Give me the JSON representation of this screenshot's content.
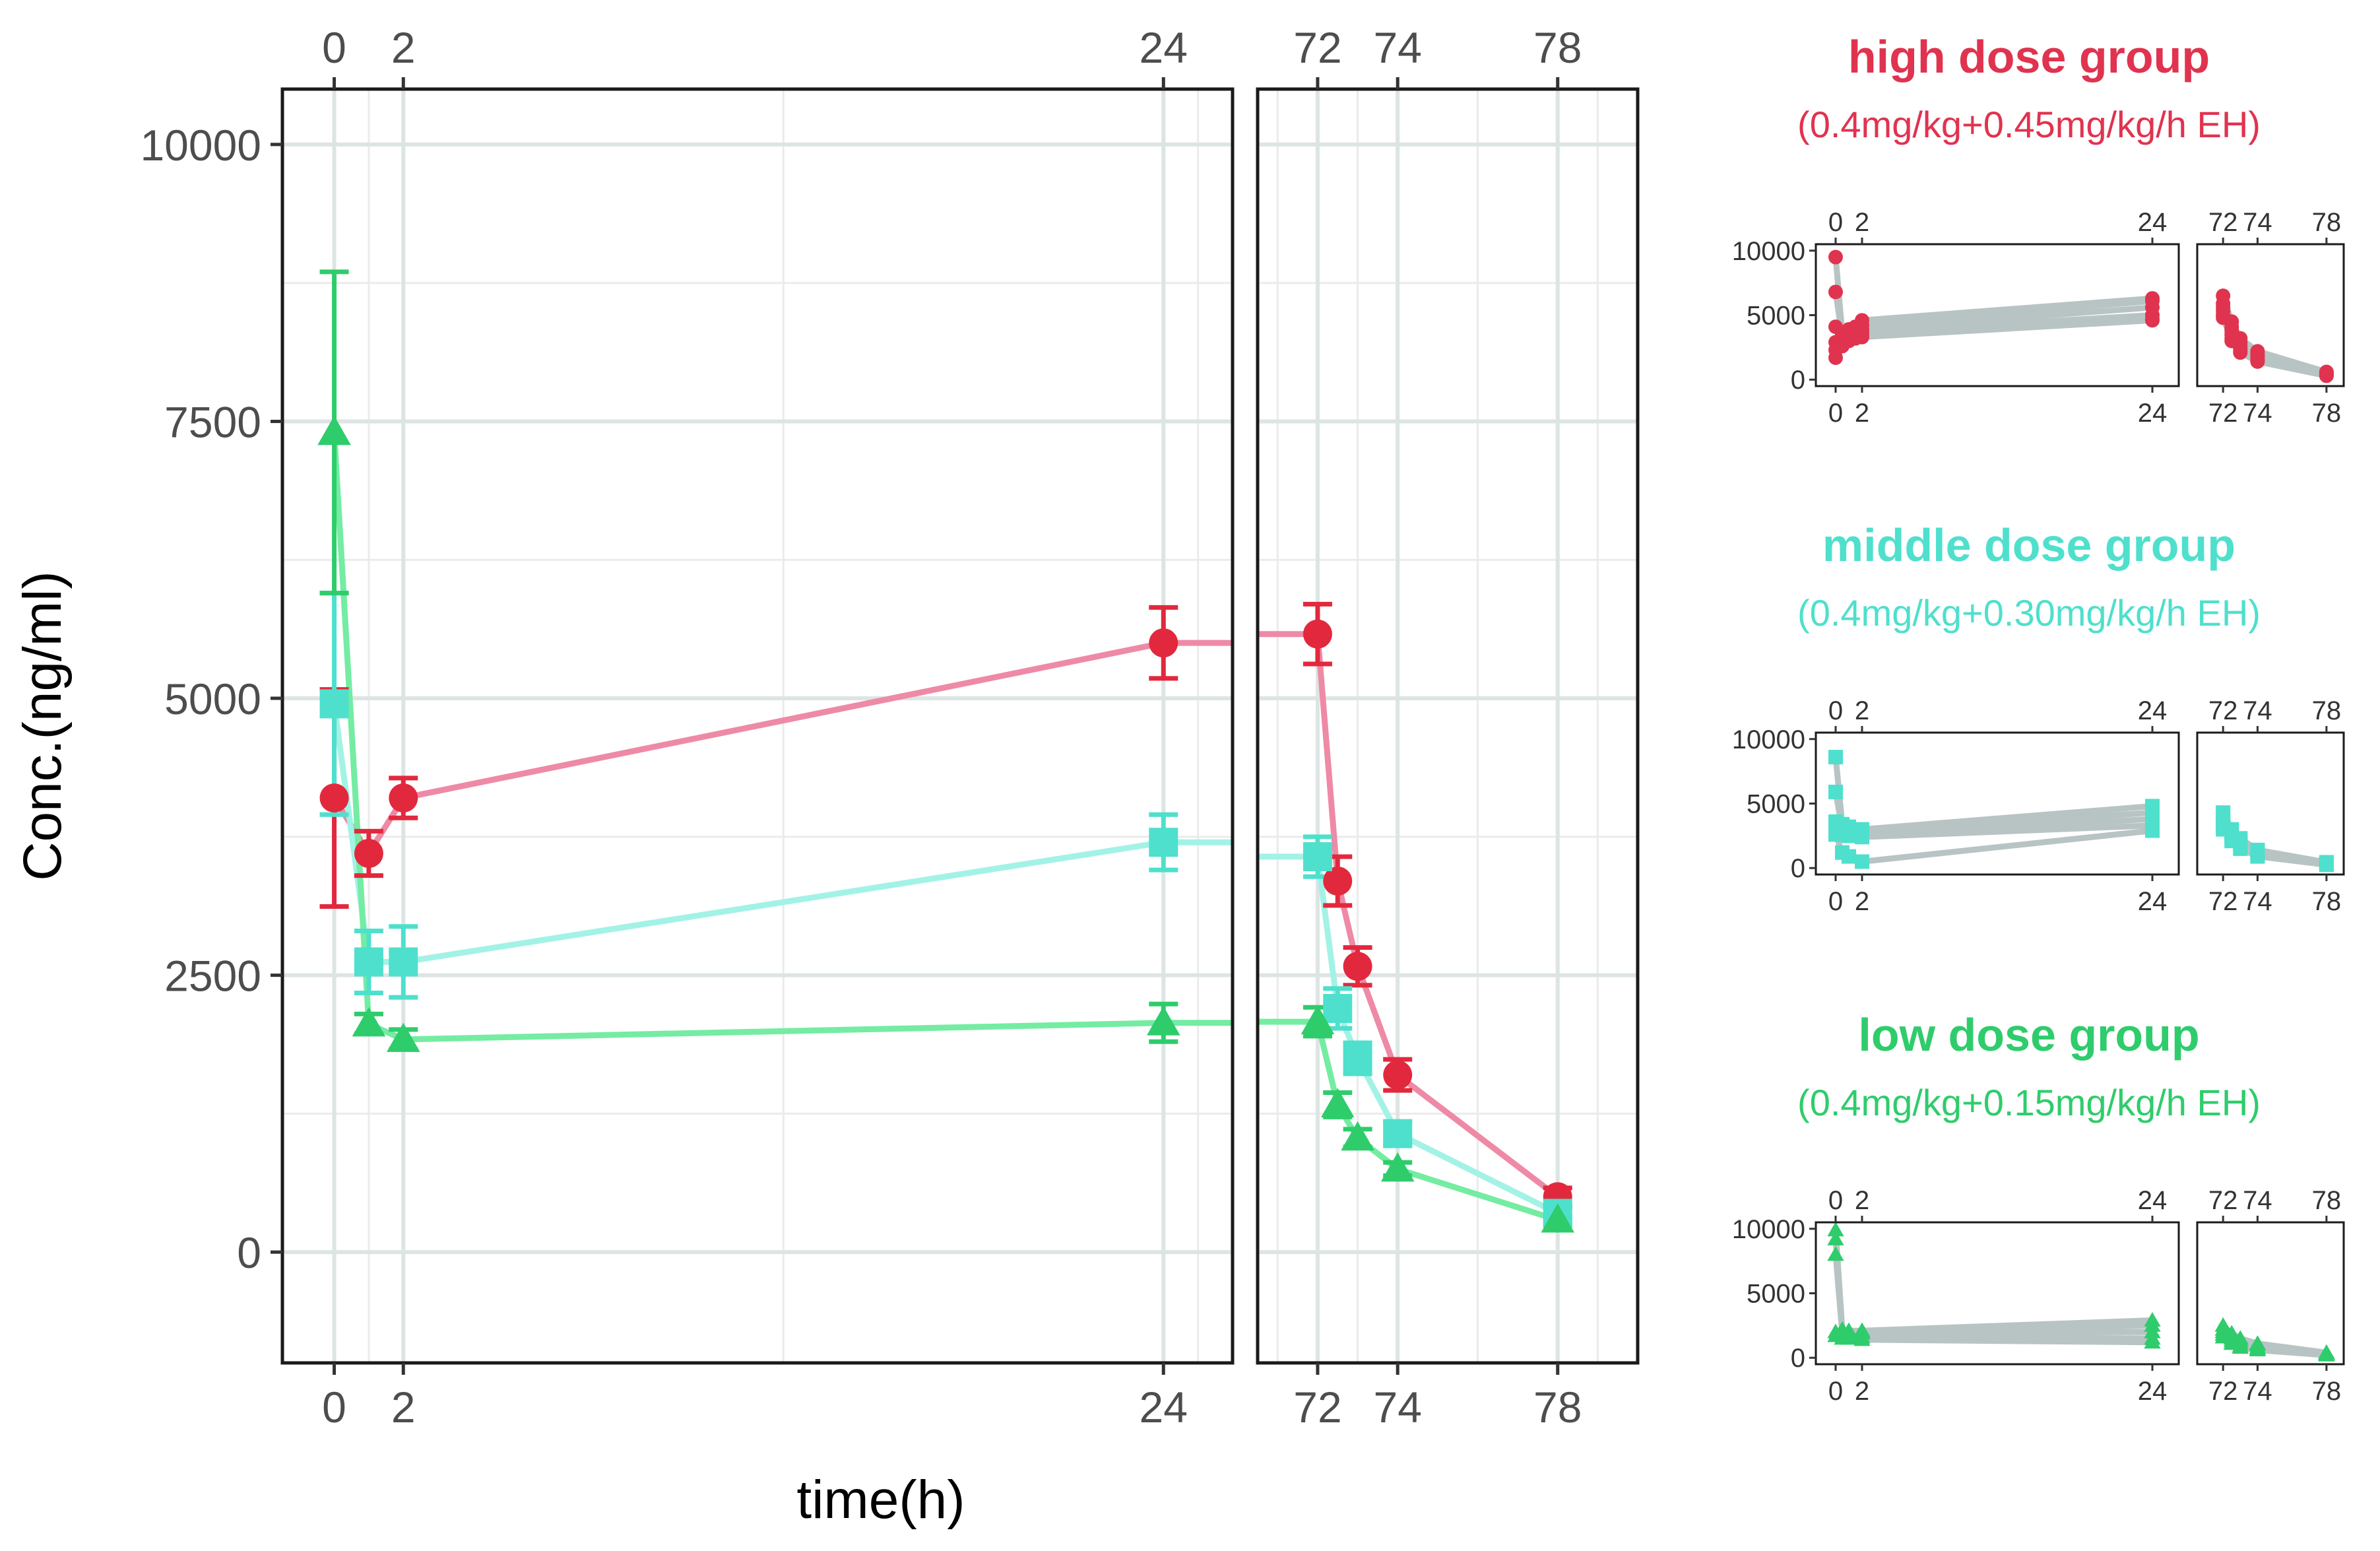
{
  "chart_data": [
    {
      "type": "line",
      "panel": "main",
      "ylabel": "Conc.(ng/ml)",
      "xlabel": "time(h)",
      "broken_x_axis": true,
      "segments": [
        {
          "xlim": [
            -1.5,
            26
          ]
        },
        {
          "xlim": [
            70.5,
            80
          ]
        }
      ],
      "ylim": [
        -1000,
        10500
      ],
      "y_ticks": [
        0,
        2500,
        5000,
        7500,
        10000
      ],
      "y_tick_labels": [
        "0",
        "2500",
        "5000",
        "7500",
        "10000"
      ],
      "x_ticks": [
        0,
        2,
        24,
        72,
        74,
        78
      ],
      "x_tick_labels": [
        "0",
        "2",
        "24",
        "72",
        "74",
        "78"
      ],
      "error_bars": "mean ± SE",
      "grid": true,
      "series": [
        {
          "marker": "circle",
          "line_color": "#ee8aa5",
          "marker_color": "#e2283d",
          "x": [
            0,
            1,
            2,
            24,
            72,
            72.5,
            73,
            74,
            78
          ],
          "y": [
            4100,
            3600,
            4100,
            5500,
            5580,
            3350,
            2580,
            1600,
            500
          ],
          "err": [
            980,
            200,
            180,
            320,
            270,
            220,
            170,
            140,
            80
          ]
        },
        {
          "marker": "square",
          "line_color": "#a3f2e6",
          "marker_color": "#4ee0cc",
          "x": [
            0,
            1,
            2,
            24,
            72,
            72.5,
            73,
            74,
            78
          ],
          "y": [
            4950,
            2620,
            2620,
            3700,
            3570,
            2200,
            1750,
            1070,
            350
          ],
          "err": [
            1000,
            280,
            320,
            250,
            180,
            180,
            140,
            100,
            50
          ]
        },
        {
          "marker": "triangle",
          "line_color": "#74eca2",
          "marker_color": "#2fcc6c",
          "x": [
            0,
            1,
            2,
            24,
            72,
            72.5,
            73,
            74,
            78
          ],
          "y": [
            7400,
            2060,
            1920,
            2070,
            2080,
            1330,
            1030,
            750,
            290
          ],
          "err": [
            1450,
            90,
            90,
            170,
            130,
            110,
            80,
            60,
            40
          ]
        }
      ]
    },
    {
      "type": "line",
      "panel": "high",
      "title": "high dose group",
      "subtitle": "(0.4mg/kg+0.45mg/kg/h EH)",
      "accent": "#e0334f",
      "marker": "circle",
      "ylim": [
        -500,
        10500
      ],
      "y_tick_labels": [
        "0",
        "5000",
        "10000"
      ],
      "x_tick_labels": [
        "0",
        "2",
        "24",
        "72",
        "74",
        "78"
      ],
      "subjects": [
        {
          "x": [
            0,
            0.5,
            1,
            1.5,
            2,
            24,
            72,
            72.5,
            73,
            74,
            78
          ],
          "y": [
            9500,
            3600,
            3900,
            4100,
            4600,
            6300,
            6500,
            4500,
            3200,
            2200,
            600
          ]
        },
        {
          "x": [
            0,
            0.5,
            1,
            1.5,
            2,
            24,
            72,
            72.5,
            73,
            74,
            78
          ],
          "y": [
            6800,
            3300,
            3600,
            3800,
            4200,
            6100,
            5900,
            4100,
            2900,
            2000,
            500
          ]
        },
        {
          "x": [
            0,
            0.5,
            1,
            1.5,
            2,
            24,
            72,
            72.5,
            73,
            74,
            78
          ],
          "y": [
            4100,
            3500,
            3400,
            3700,
            3900,
            5600,
            5600,
            3800,
            2600,
            1800,
            450
          ]
        },
        {
          "x": [
            0,
            0.5,
            1,
            1.5,
            2,
            24,
            72,
            72.5,
            73,
            74,
            78
          ],
          "y": [
            2900,
            3000,
            3200,
            3500,
            3700,
            5000,
            5300,
            3500,
            2400,
            1600,
            400
          ]
        },
        {
          "x": [
            0,
            0.5,
            1,
            1.5,
            2,
            24,
            72,
            72.5,
            73,
            74,
            78
          ],
          "y": [
            2300,
            2800,
            3100,
            3300,
            3500,
            4700,
            5000,
            3200,
            2200,
            1500,
            350
          ]
        },
        {
          "x": [
            0,
            0.5,
            1,
            1.5,
            2,
            24,
            72,
            72.5,
            73,
            74,
            78
          ],
          "y": [
            1700,
            2600,
            3000,
            3200,
            3300,
            4600,
            4800,
            3000,
            2100,
            1400,
            300
          ]
        }
      ]
    },
    {
      "type": "line",
      "panel": "middle",
      "title": "middle dose group",
      "subtitle": "(0.4mg/kg+0.30mg/kg/h EH)",
      "accent": "#4ee0cc",
      "marker": "square",
      "ylim": [
        -500,
        10500
      ],
      "y_tick_labels": [
        "0",
        "5000",
        "10000"
      ],
      "x_tick_labels": [
        "0",
        "2",
        "24",
        "72",
        "74",
        "78"
      ],
      "subjects": [
        {
          "x": [
            0,
            0.5,
            1,
            2,
            24,
            72,
            72.5,
            73,
            74,
            78
          ],
          "y": [
            8600,
            3400,
            3200,
            3000,
            4800,
            4300,
            3000,
            2300,
            1400,
            450
          ]
        },
        {
          "x": [
            0,
            0.5,
            1,
            2,
            24,
            72,
            72.5,
            73,
            74,
            78
          ],
          "y": [
            5900,
            3000,
            2900,
            2800,
            4300,
            4000,
            2800,
            2100,
            1300,
            400
          ]
        },
        {
          "x": [
            0,
            0.5,
            1,
            2,
            24,
            72,
            72.5,
            73,
            74,
            78
          ],
          "y": [
            3600,
            2700,
            2700,
            2600,
            3800,
            3700,
            2500,
            1900,
            1100,
            350
          ]
        },
        {
          "x": [
            0,
            0.5,
            1,
            2,
            24,
            72,
            72.5,
            73,
            74,
            78
          ],
          "y": [
            2900,
            2600,
            2500,
            2400,
            3300,
            3300,
            2300,
            1700,
            1000,
            300
          ]
        },
        {
          "x": [
            0,
            0.5,
            1,
            2,
            24,
            72,
            72.5,
            73,
            74,
            78
          ],
          "y": [
            2600,
            1200,
            900,
            500,
            2900,
            3000,
            2100,
            1500,
            900,
            250
          ]
        }
      ]
    },
    {
      "type": "line",
      "panel": "low",
      "title": "low dose group",
      "subtitle": "(0.4mg/kg+0.15mg/kg/h EH)",
      "accent": "#2fcc6c",
      "marker": "triangle",
      "ylim": [
        -500,
        10500
      ],
      "y_tick_labels": [
        "0",
        "5000",
        "10000"
      ],
      "x_tick_labels": [
        "0",
        "2",
        "24",
        "72",
        "74",
        "78"
      ],
      "subjects": [
        {
          "x": [
            0,
            0.5,
            1,
            2,
            24,
            72,
            72.5,
            73,
            74,
            78
          ],
          "y": [
            9900,
            2200,
            2100,
            2100,
            2900,
            2500,
            1900,
            1500,
            1100,
            400
          ]
        },
        {
          "x": [
            0,
            0.5,
            1,
            2,
            24,
            72,
            72.5,
            73,
            74,
            78
          ],
          "y": [
            9200,
            2100,
            2000,
            2000,
            2500,
            2200,
            1700,
            1300,
            1000,
            350
          ]
        },
        {
          "x": [
            0,
            0.5,
            1,
            2,
            24,
            72,
            72.5,
            73,
            74,
            78
          ],
          "y": [
            8000,
            1900,
            1900,
            1900,
            2000,
            2000,
            1500,
            1100,
            800,
            300
          ]
        },
        {
          "x": [
            0,
            0.5,
            1,
            2,
            24,
            72,
            72.5,
            73,
            74,
            78
          ],
          "y": [
            2000,
            1700,
            1700,
            1600,
            1500,
            1800,
            1300,
            900,
            700,
            250
          ]
        },
        {
          "x": [
            0,
            0.5,
            1,
            2,
            24,
            72,
            72.5,
            73,
            74,
            78
          ],
          "y": [
            1700,
            1500,
            1500,
            1400,
            1200,
            1600,
            1100,
            800,
            600,
            200
          ]
        }
      ]
    }
  ]
}
